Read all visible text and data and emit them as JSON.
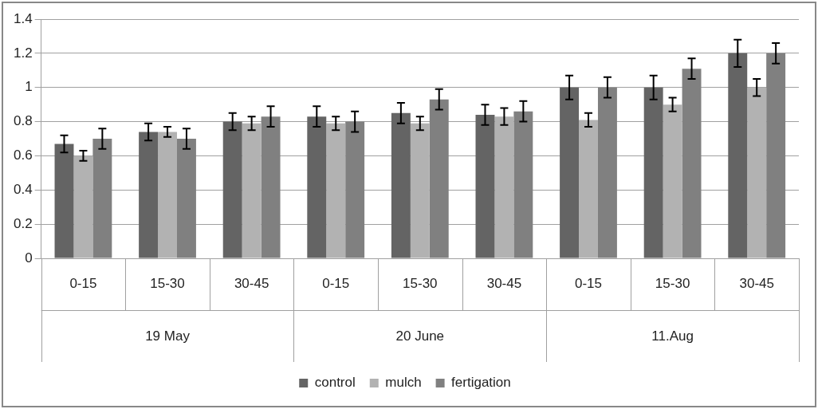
{
  "chart_data": {
    "type": "bar",
    "categories": [
      "0-15",
      "15-30",
      "30-45",
      "0-15",
      "15-30",
      "30-45",
      "0-15",
      "15-30",
      "30-45"
    ],
    "annotations": [
      "19 May",
      "20 June",
      "11.Aug"
    ],
    "series": [
      {
        "name": "control",
        "color": "#646464",
        "values": [
          0.67,
          0.74,
          0.8,
          0.83,
          0.85,
          0.84,
          1.0,
          1.0,
          1.2
        ],
        "errors": [
          0.05,
          0.05,
          0.05,
          0.06,
          0.06,
          0.06,
          0.07,
          0.07,
          0.08
        ]
      },
      {
        "name": "mulch",
        "color": "#b2b2b2",
        "values": [
          0.6,
          0.74,
          0.79,
          0.79,
          0.79,
          0.83,
          0.81,
          0.9,
          1.0
        ],
        "errors": [
          0.03,
          0.03,
          0.04,
          0.04,
          0.04,
          0.05,
          0.04,
          0.04,
          0.05
        ]
      },
      {
        "name": "fertigation",
        "color": "#808080",
        "values": [
          0.7,
          0.7,
          0.83,
          0.8,
          0.93,
          0.86,
          1.0,
          1.11,
          1.2
        ],
        "errors": [
          0.06,
          0.06,
          0.06,
          0.06,
          0.06,
          0.06,
          0.06,
          0.06,
          0.06
        ]
      }
    ],
    "ylim": [
      0,
      1.4
    ],
    "yticks": [
      0,
      0.2,
      0.4,
      0.6,
      0.8,
      1,
      1.2,
      1.4
    ],
    "grid": "y",
    "legend": "bottom"
  }
}
